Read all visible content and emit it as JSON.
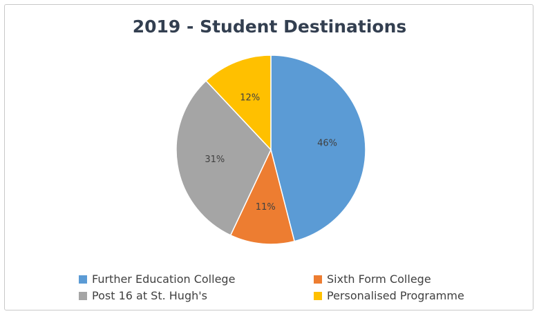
{
  "chart_data": {
    "type": "pie",
    "title": "2019 - Student Destinations",
    "slices": [
      {
        "label": "Further Education College",
        "value": 46,
        "display": "46%",
        "color": "#5b9bd5"
      },
      {
        "label": "Sixth Form College",
        "value": 11,
        "display": "11%",
        "color": "#ed7d31"
      },
      {
        "label": "Post 16 at St. Hugh's",
        "value": 31,
        "display": "31%",
        "color": "#a5a5a5"
      },
      {
        "label": "Personalised Programme",
        "value": 12,
        "display": "12%",
        "color": "#ffc000"
      }
    ],
    "legend_position": "bottom",
    "data_label_color": "#404040"
  }
}
